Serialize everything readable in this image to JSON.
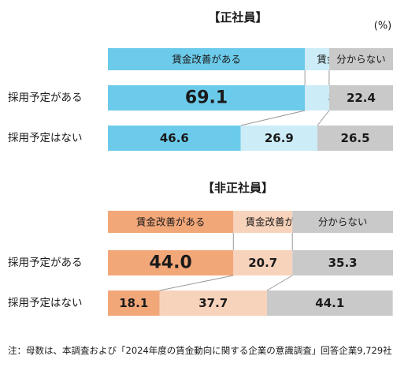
{
  "unit_label": "(%)",
  "legend_labels": [
    "賃金改善がある",
    "賃金改善がない",
    "分からない"
  ],
  "note": "注：母数は、本調査および「2024年度の賃金動向に関する企業の意識調査」回答企業9,729社",
  "chart_data": [
    {
      "type": "bar",
      "stacked": true,
      "orientation": "horizontal",
      "title": "【正社員】",
      "unit": "(%)",
      "categories": [
        "採用予定がある",
        "採用予定はない"
      ],
      "series": [
        {
          "name": "賃金改善がある",
          "values": [
            69.1,
            46.6
          ],
          "color": "#6ccbea"
        },
        {
          "name": "賃金改善がない",
          "values": [
            8.5,
            26.9
          ],
          "color": "#ccecf7"
        },
        {
          "name": "分からない",
          "values": [
            22.4,
            26.5
          ],
          "color": "#c9c9c9"
        }
      ],
      "xlim": [
        0,
        100
      ]
    },
    {
      "type": "bar",
      "stacked": true,
      "orientation": "horizontal",
      "title": "【非正社員】",
      "categories": [
        "採用予定がある",
        "採用予定はない"
      ],
      "series": [
        {
          "name": "賃金改善がある",
          "values": [
            44.0,
            18.1
          ],
          "color": "#f2a779"
        },
        {
          "name": "賃金改善がない",
          "values": [
            20.7,
            37.7
          ],
          "color": "#f8d3bb"
        },
        {
          "name": "分からない",
          "values": [
            35.3,
            44.1
          ],
          "color": "#c9c9c9"
        }
      ],
      "xlim": [
        0,
        100
      ]
    }
  ]
}
